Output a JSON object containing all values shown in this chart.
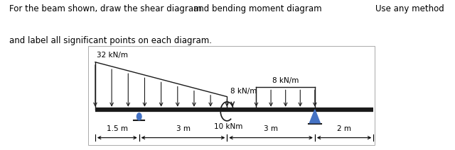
{
  "title_text": "For the beam shown, draw the shear diagram",
  "title_text2": "and label all significant points on each diagram.",
  "center_text": "and bending moment diagram",
  "right_text": "Use any method",
  "load1_label": "32 kN/m",
  "load2_label": "8 kN/m",
  "load3_label": "8 kN/m",
  "moment_label": "10 kNm",
  "dim1": "1.5 m",
  "dim2": "3 m",
  "dim3": "3 m",
  "dim4": "2 m",
  "beam_color": "#1a1a1a",
  "arrow_color": "#1a1a1a",
  "support_pin_color": "#4472C4",
  "support_roller_color": "#4472C4",
  "background_color": "#ffffff",
  "font_size_title": 8.5,
  "font_size_label": 7.5
}
